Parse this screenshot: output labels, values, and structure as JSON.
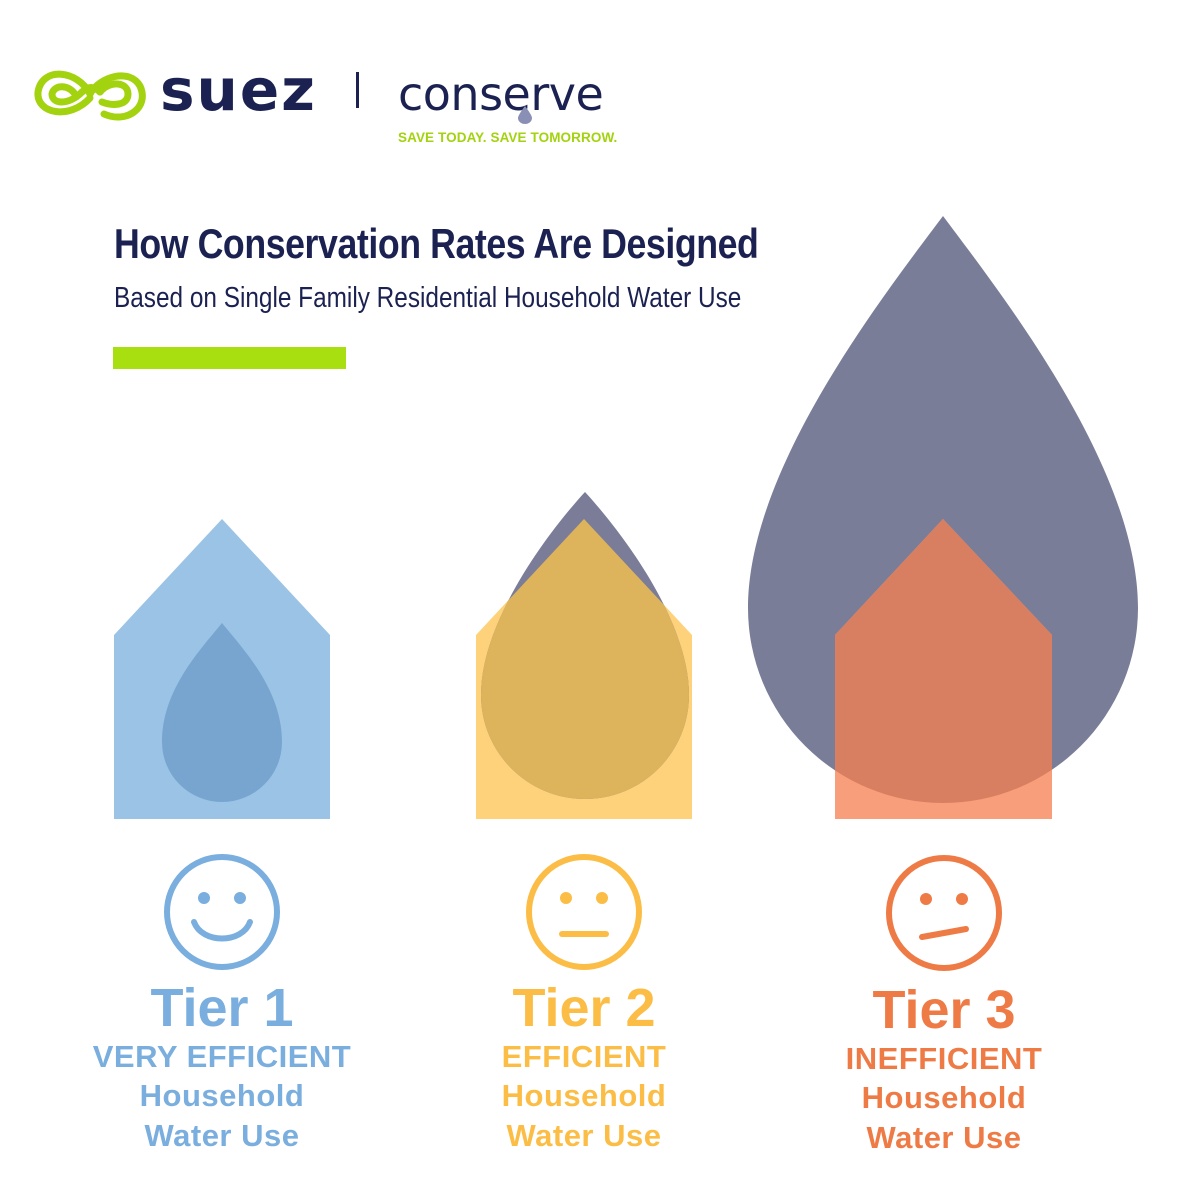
{
  "brand": {
    "company": "suez",
    "program": "conserve",
    "tagline": "SAVE TODAY. SAVE TOMORROW.",
    "green": "#a3d30f",
    "navy": "#1b2151"
  },
  "heading": {
    "title": "How Conservation Rates Are Designed",
    "subtitle": "Based on Single Family Residential Household Water Use"
  },
  "tiers": [
    {
      "tier": "Tier 1",
      "efficiency": "VERY EFFICIENT",
      "line1": "Household",
      "line2": "Water Use",
      "face": "smile-face-icon",
      "color": "#7aaede"
    },
    {
      "tier": "Tier 2",
      "efficiency": "EFFICIENT",
      "line1": "Household",
      "line2": "Water Use",
      "face": "neutral-face-icon",
      "color": "#fbbd45"
    },
    {
      "tier": "Tier 3",
      "efficiency": "INEFFICIENT",
      "line1": "Household",
      "line2": "Water Use",
      "face": "frown-face-icon",
      "color": "#ee7b46"
    }
  ]
}
